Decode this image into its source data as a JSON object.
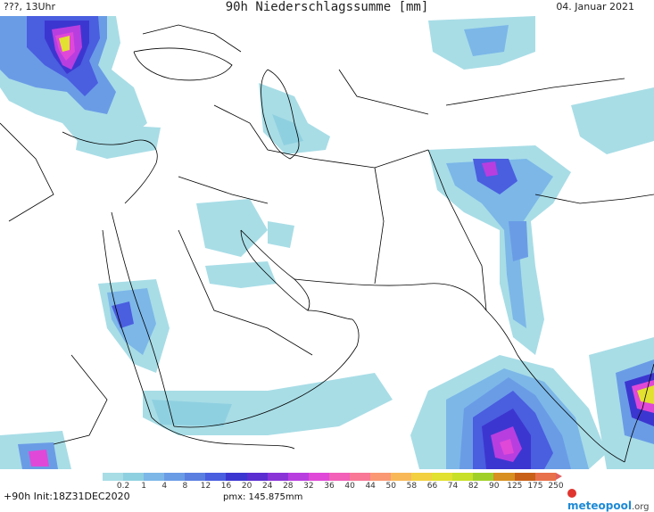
{
  "header": {
    "left": "???, 13Uhr",
    "title": "90h Niederschlagssumme [mm]",
    "date": "04. Januar 2021"
  },
  "legend": {
    "ticks": [
      "0.2",
      "1",
      "4",
      "8",
      "12",
      "16",
      "20",
      "24",
      "28",
      "32",
      "36",
      "40",
      "44",
      "50",
      "58",
      "66",
      "74",
      "82",
      "90",
      "125",
      "175",
      "250"
    ],
    "colors": [
      "#a8dde6",
      "#8fd0e0",
      "#7cb7e8",
      "#6a9ce6",
      "#5a7fe0",
      "#4a5ee0",
      "#3c36d0",
      "#5a2ed0",
      "#8a34d8",
      "#b83ee0",
      "#e048d8",
      "#f260b8",
      "#f87896",
      "#fa9874",
      "#f8b858",
      "#f2d040",
      "#e2e030",
      "#c8e028",
      "#a0d028",
      "#d89020",
      "#c86018",
      "#e8704a"
    ]
  },
  "footer": {
    "init": "+90h  Init:18Z31DEC2020",
    "pmx": "pmx: 145.875mm",
    "logo_brand": "meteopool",
    "logo_tld": ".org"
  },
  "colors": {
    "precip_light": "#a8dde6",
    "precip_blue": "#6a9ce6",
    "precip_deep": "#3c36d0",
    "precip_magenta": "#e048d8",
    "precip_yellow": "#e2e030",
    "border": "#000000"
  }
}
